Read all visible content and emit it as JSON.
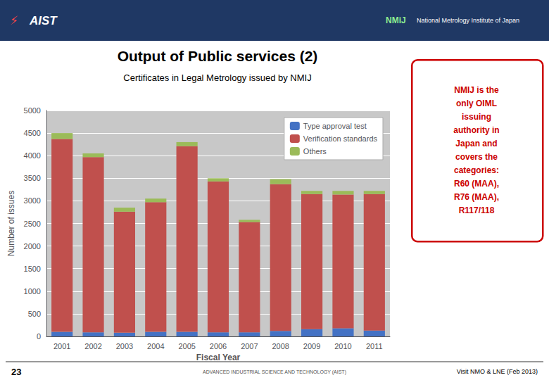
{
  "chart_data": {
    "type": "bar",
    "title": "Output of Public services (2)",
    "subtitle": "Certificates in Legal Metrology issued by NMIJ",
    "xlabel": "Fiscal Year",
    "ylabel": "Number of issues",
    "categories": [
      "2001",
      "2002",
      "2003",
      "2004",
      "2005",
      "2006",
      "2007",
      "2008",
      "2009",
      "2010",
      "2011"
    ],
    "series": [
      {
        "name": "Type approval test",
        "color": "#4472C4",
        "values": [
          100,
          90,
          80,
          100,
          100,
          90,
          90,
          120,
          160,
          180,
          130
        ]
      },
      {
        "name": "Verification standards",
        "color": "#C0504D",
        "values": [
          4270,
          3880,
          2680,
          2870,
          4110,
          3340,
          2440,
          3250,
          2990,
          2960,
          3020
        ]
      },
      {
        "name": "Others",
        "color": "#9BBB59",
        "values": [
          130,
          80,
          90,
          80,
          90,
          70,
          50,
          110,
          70,
          80,
          70
        ]
      }
    ],
    "stacked": true,
    "ylim": [
      0,
      5000
    ],
    "yticks": [
      0,
      500,
      1000,
      1500,
      2000,
      2500,
      3000,
      3500,
      4000,
      4500,
      5000
    ],
    "grid": true,
    "legend": "upper right",
    "annotations": [
      "⚡",
      "AIST",
      "NMiJ",
      "National Metrology Institute of Japan",
      "NMIJ is the\nonly OIML\nissuing\nauthority in\nJapan and\ncovers the\ncategories:\nR60 (MAA),\nR76 (MAA),\nR117/118",
      "23",
      "ADVANCED INDUSTRIAL SCIENCE AND TECHNOLOGY (AIST)",
      "Visit NMO & LNE (Feb 2013)"
    ]
  }
}
